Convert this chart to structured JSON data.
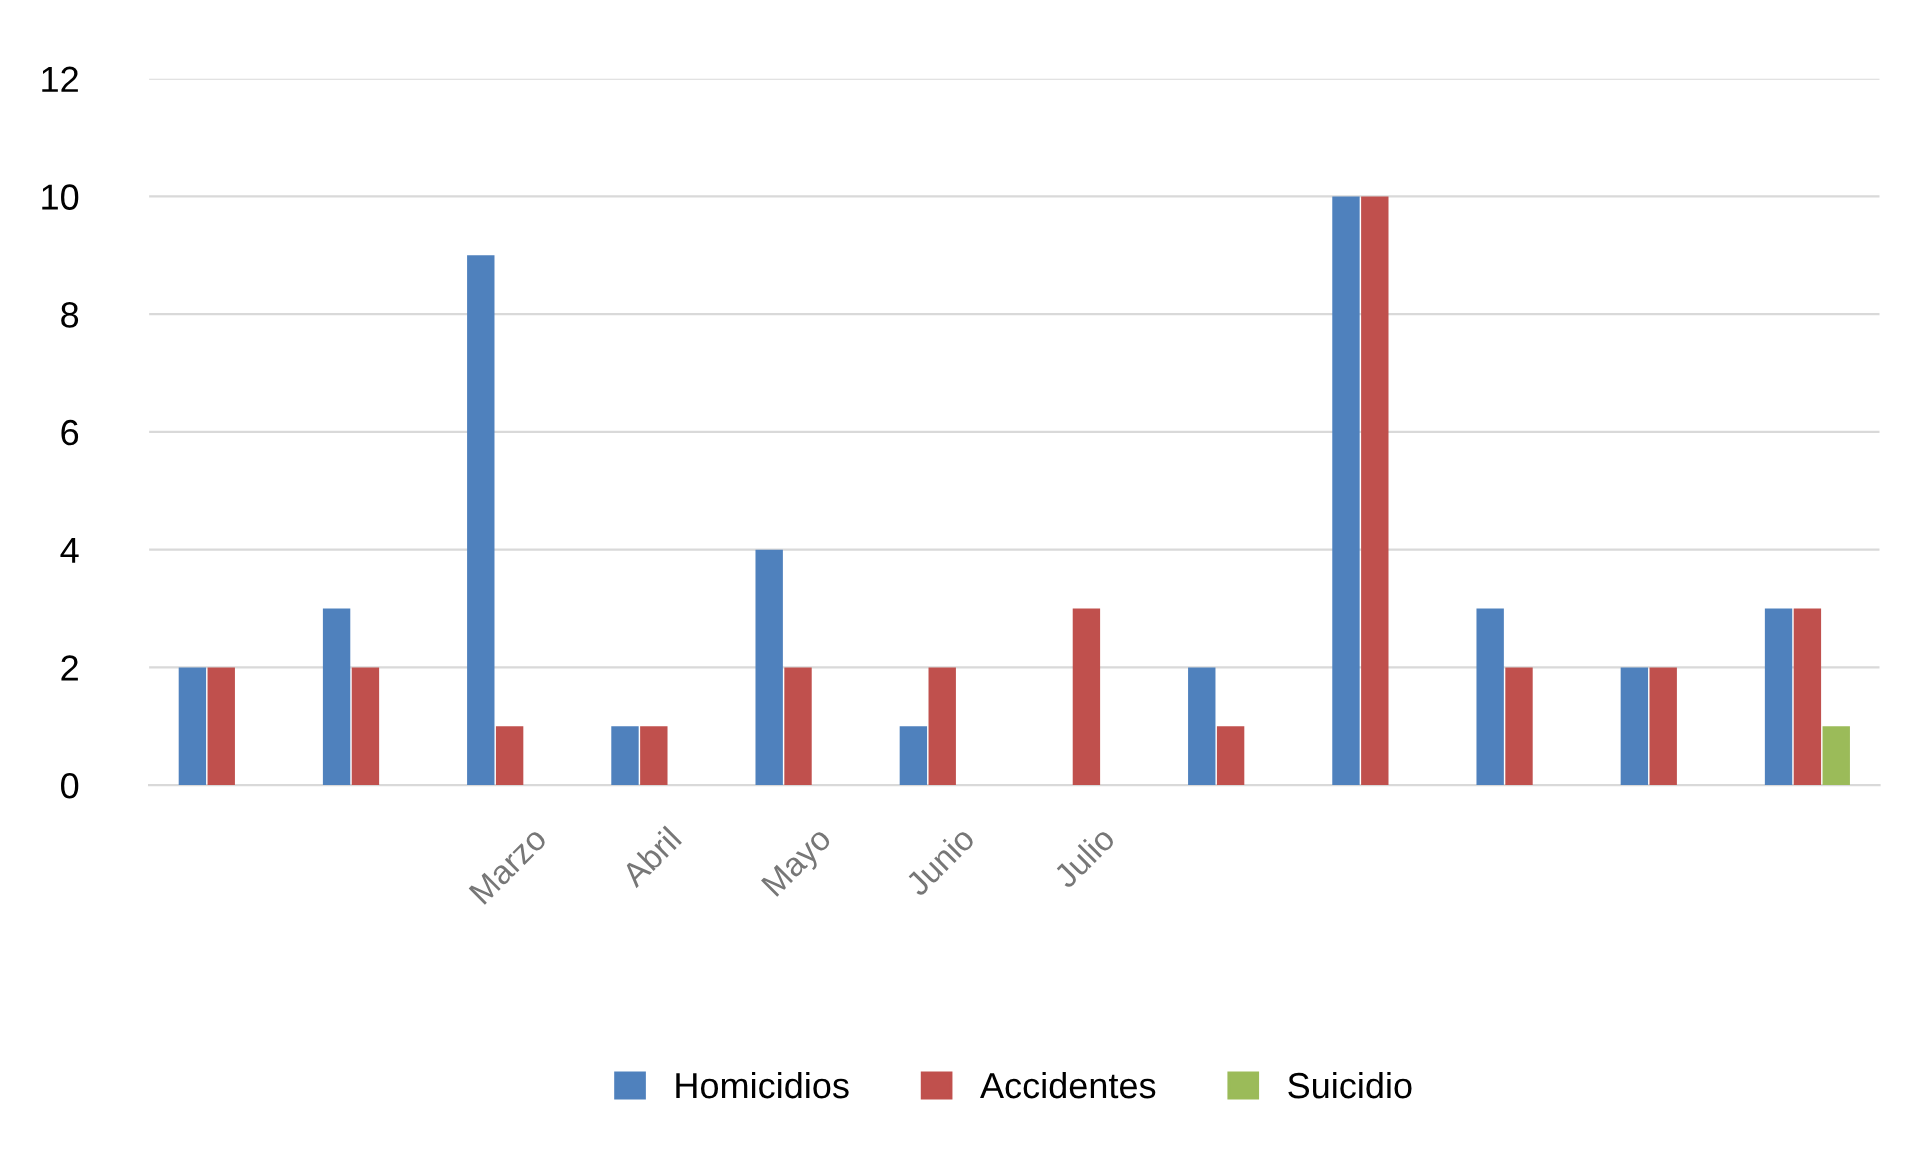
{
  "chart_data": {
    "type": "bar",
    "categories": [
      null,
      null,
      "Marzo",
      "Abril",
      "Mayo",
      "Junio",
      "Julio",
      null,
      null,
      null,
      null,
      null
    ],
    "series": [
      {
        "name": "Homicidios",
        "color": "#4f81bd",
        "values": [
          2,
          3,
          9,
          1,
          4,
          1,
          null,
          2,
          10,
          3,
          2,
          3
        ]
      },
      {
        "name": "Accidentes",
        "color": "#c0504d",
        "values": [
          2,
          2,
          1,
          1,
          2,
          2,
          3,
          1,
          10,
          2,
          2,
          3
        ]
      },
      {
        "name": "Suicidio",
        "color": "#9bbb59",
        "values": [
          null,
          null,
          null,
          null,
          null,
          null,
          null,
          null,
          null,
          null,
          null,
          1
        ]
      }
    ],
    "ylim": [
      0,
      12
    ],
    "yticks": [
      0,
      2,
      4,
      6,
      8,
      10,
      12
    ],
    "grid": "y",
    "legend": "bottom"
  }
}
